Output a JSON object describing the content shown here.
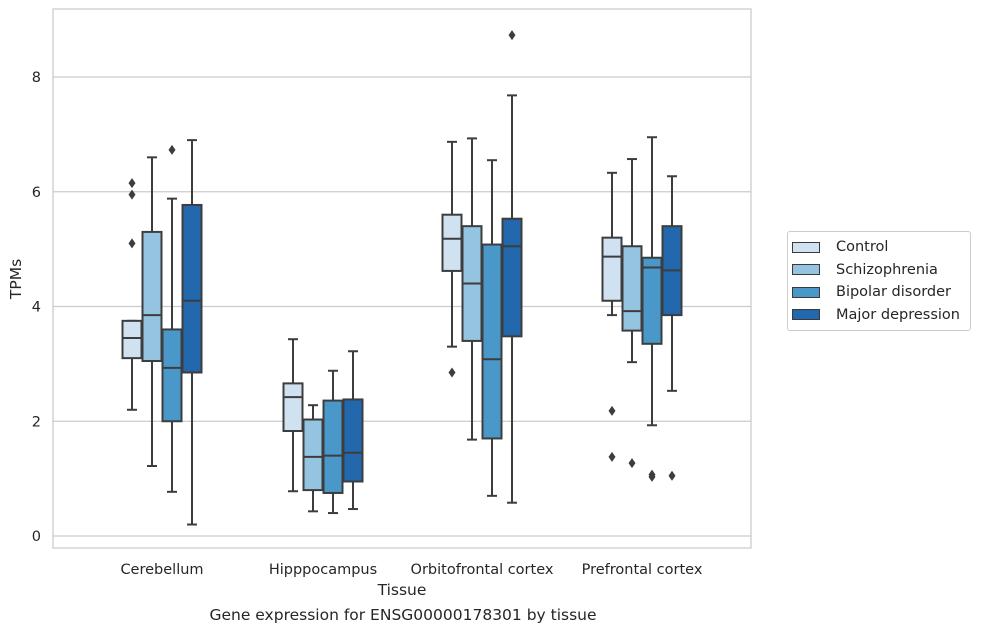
{
  "chart_data": {
    "type": "boxplot",
    "xlabel": "Tissue",
    "ylabel": "TPMs",
    "ylim": [
      -0.2,
      9.2
    ],
    "yticks": [
      0,
      2,
      4,
      6,
      8
    ],
    "grid": true,
    "legend_position": "right",
    "categories": [
      "Cerebellum",
      "Hipppocampus",
      "Orbitofrontal cortex",
      "Prefrontal cortex"
    ],
    "series": [
      {
        "name": "Control",
        "color": "#d0e1f2",
        "boxes": [
          {
            "whisker_low": 2.2,
            "q1": 3.1,
            "median": 3.45,
            "q3": 3.75,
            "whisker_high": 3.75,
            "outliers": [
              6.15,
              5.95,
              5.1
            ]
          },
          {
            "whisker_low": 0.78,
            "q1": 1.83,
            "median": 2.42,
            "q3": 2.66,
            "whisker_high": 3.43,
            "outliers": []
          },
          {
            "whisker_low": 3.3,
            "q1": 4.62,
            "median": 5.18,
            "q3": 5.6,
            "whisker_high": 6.87,
            "outliers": [
              2.85
            ]
          },
          {
            "whisker_low": 3.85,
            "q1": 4.1,
            "median": 4.87,
            "q3": 5.2,
            "whisker_high": 6.33,
            "outliers": [
              2.18,
              1.38
            ]
          }
        ]
      },
      {
        "name": "Schizophrenia",
        "color": "#94c4df",
        "boxes": [
          {
            "whisker_low": 1.22,
            "q1": 3.05,
            "median": 3.85,
            "q3": 5.3,
            "whisker_high": 6.6,
            "outliers": []
          },
          {
            "whisker_low": 0.43,
            "q1": 0.8,
            "median": 1.38,
            "q3": 2.03,
            "whisker_high": 2.28,
            "outliers": []
          },
          {
            "whisker_low": 1.68,
            "q1": 3.4,
            "median": 4.4,
            "q3": 5.4,
            "whisker_high": 6.93,
            "outliers": []
          },
          {
            "whisker_low": 3.03,
            "q1": 3.58,
            "median": 3.92,
            "q3": 5.05,
            "whisker_high": 6.57,
            "outliers": [
              1.27
            ]
          }
        ]
      },
      {
        "name": "Bipolar disorder",
        "color": "#4a98c9",
        "boxes": [
          {
            "whisker_low": 0.77,
            "q1": 2.0,
            "median": 2.93,
            "q3": 3.6,
            "whisker_high": 5.88,
            "outliers": [
              6.73
            ]
          },
          {
            "whisker_low": 0.4,
            "q1": 0.75,
            "median": 1.4,
            "q3": 2.36,
            "whisker_high": 2.88,
            "outliers": []
          },
          {
            "whisker_low": 0.7,
            "q1": 1.7,
            "median": 3.08,
            "q3": 5.08,
            "whisker_high": 6.55,
            "outliers": []
          },
          {
            "whisker_low": 1.93,
            "q1": 3.35,
            "median": 4.68,
            "q3": 4.85,
            "whisker_high": 6.95,
            "outliers": [
              1.03,
              1.07
            ]
          }
        ]
      },
      {
        "name": "Major depression",
        "color": "#2367ac",
        "boxes": [
          {
            "whisker_low": 0.2,
            "q1": 2.85,
            "median": 4.1,
            "q3": 5.77,
            "whisker_high": 6.9,
            "outliers": []
          },
          {
            "whisker_low": 0.47,
            "q1": 0.95,
            "median": 1.45,
            "q3": 2.38,
            "whisker_high": 3.22,
            "outliers": []
          },
          {
            "whisker_low": 0.58,
            "q1": 3.48,
            "median": 5.05,
            "q3": 5.53,
            "whisker_high": 7.68,
            "outliers": [
              8.73
            ]
          },
          {
            "whisker_low": 2.53,
            "q1": 3.85,
            "median": 4.63,
            "q3": 5.4,
            "whisker_high": 6.27,
            "outliers": [
              1.05
            ]
          }
        ]
      }
    ]
  },
  "caption": "Gene expression for ENSG00000178301 by tissue"
}
